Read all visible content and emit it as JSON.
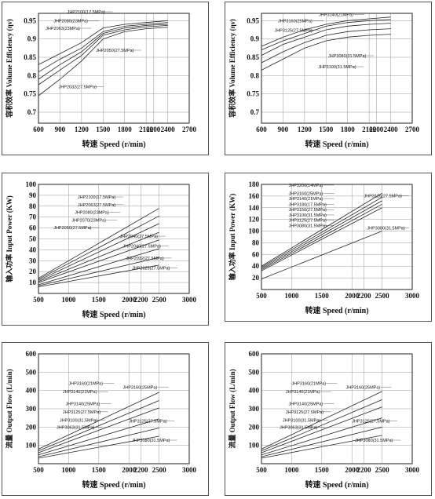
{
  "charts": [
    {
      "id": "vol-eff-left",
      "type": "line",
      "ylabel": "容积效率 Volume Efficiency (ην)",
      "xlabel": "转速 Speed (r/min)",
      "xticks": [
        600,
        900,
        1200,
        1500,
        1800,
        2100,
        2200,
        2400,
        2700
      ],
      "yticks": [
        0.7,
        0.75,
        0.8,
        0.85,
        0.9,
        0.95
      ],
      "xlim": [
        600,
        2700
      ],
      "ylim": [
        0.67,
        0.97
      ],
      "series": [
        {
          "name": "JHP2100(17.5MPa)",
          "x": [
            600,
            900,
            1200,
            1500,
            1800,
            2100,
            2400
          ],
          "y": [
            0.83,
            0.86,
            0.89,
            0.93,
            0.94,
            0.945,
            0.95
          ]
        },
        {
          "name": "JHP2080(23MPa)",
          "x": [
            600,
            900,
            1200,
            1500,
            1800,
            2100,
            2400
          ],
          "y": [
            0.81,
            0.845,
            0.875,
            0.92,
            0.935,
            0.94,
            0.945
          ]
        },
        {
          "name": "JHP2063(23MPa)",
          "x": [
            600,
            900,
            1200,
            1500,
            1800,
            2100,
            2400
          ],
          "y": [
            0.79,
            0.83,
            0.865,
            0.915,
            0.93,
            0.937,
            0.94
          ]
        },
        {
          "name": "JHP2050(27.5MPa)",
          "x": [
            600,
            900,
            1200,
            1500,
            1800,
            2100,
            2400
          ],
          "y": [
            0.775,
            0.815,
            0.855,
            0.91,
            0.925,
            0.933,
            0.937
          ]
        },
        {
          "name": "JHP2032(27.5MPa)",
          "x": [
            600,
            900,
            1200,
            1500,
            1800,
            2100,
            2400
          ],
          "y": [
            0.745,
            0.79,
            0.84,
            0.9,
            0.92,
            0.928,
            0.932
          ]
        }
      ],
      "labels": [
        {
          "text": "JHP2100(17.5MPa)",
          "x": 1000,
          "y": 0.97
        },
        {
          "text": "JHP2080(23MPa)",
          "x": 810,
          "y": 0.945
        },
        {
          "text": "JHP2063(23MPa)",
          "x": 700,
          "y": 0.925
        },
        {
          "text": "JHP2050(27.5MPa)",
          "x": 1400,
          "y": 0.865
        },
        {
          "text": "JHP2032(27.5MPa)",
          "x": 880,
          "y": 0.765
        }
      ]
    },
    {
      "id": "vol-eff-right",
      "type": "line",
      "ylabel": "容积效率 Volume Efficiency (ην)",
      "xlabel": "转速 Speed (r/min)",
      "xticks": [
        600,
        900,
        1200,
        1500,
        1800,
        2100,
        2200,
        2400,
        2700
      ],
      "yticks": [
        0.7,
        0.75,
        0.8,
        0.85,
        0.9,
        0.95
      ],
      "xlim": [
        600,
        2700
      ],
      "ylim": [
        0.67,
        0.97
      ],
      "series": [
        {
          "name": "JHP3140(21MPa)",
          "x": [
            600,
            900,
            1200,
            1500,
            1800,
            2100,
            2400
          ],
          "y": [
            0.88,
            0.905,
            0.925,
            0.94,
            0.95,
            0.955,
            0.96
          ]
        },
        {
          "name": "JHP3160(25MPa)",
          "x": [
            600,
            900,
            1200,
            1500,
            1800,
            2100,
            2400
          ],
          "y": [
            0.87,
            0.895,
            0.915,
            0.935,
            0.945,
            0.95,
            0.953
          ]
        },
        {
          "name": "JHP3125(27.5MPa)",
          "x": [
            600,
            900,
            1200,
            1500,
            1800,
            2100,
            2400
          ],
          "y": [
            0.855,
            0.885,
            0.905,
            0.925,
            0.935,
            0.94,
            0.943
          ]
        },
        {
          "name": "JHP3080(31.5MPa)",
          "x": [
            600,
            900,
            1200,
            1500,
            1800,
            2100,
            2400
          ],
          "y": [
            0.835,
            0.865,
            0.89,
            0.91,
            0.92,
            0.925,
            0.928
          ]
        },
        {
          "name": "JHP3100(31.5MPa)",
          "x": [
            600,
            900,
            1200,
            1500,
            1800,
            2100,
            2400
          ],
          "y": [
            0.815,
            0.845,
            0.875,
            0.895,
            0.905,
            0.91,
            0.913
          ]
        }
      ],
      "labels": [
        {
          "text": "JHP3140(21MPa)",
          "x": 1400,
          "y": 0.963
        },
        {
          "text": "JHP3160(25MPa)",
          "x": 830,
          "y": 0.945
        },
        {
          "text": "JHP3125(27.5MPa)",
          "x": 780,
          "y": 0.92
        },
        {
          "text": "JHP3080(31.5MPa)",
          "x": 1530,
          "y": 0.85
        },
        {
          "text": "JHP3100(31.5MPa)",
          "x": 1390,
          "y": 0.82
        }
      ]
    },
    {
      "id": "input-power-left",
      "type": "line",
      "ylabel": "输入功率 Input Power (KW)",
      "xlabel": "转速 Speed (r/min)",
      "xticks": [
        500,
        1000,
        1500,
        2000,
        2200,
        2500,
        3000
      ],
      "yticks": [
        10,
        20,
        30,
        40,
        50,
        60,
        70,
        80,
        90,
        100
      ],
      "xlim": [
        500,
        3000
      ],
      "ylim": [
        0,
        100
      ],
      "series": [
        {
          "name": "JHP2100(17.5MPa)",
          "x": [
            500,
            2500
          ],
          "y": [
            14,
            78
          ]
        },
        {
          "name": "JHP2063(27.5MPa)",
          "x": [
            500,
            2500
          ],
          "y": [
            13,
            71
          ]
        },
        {
          "name": "JHP2080(23MPa)",
          "x": [
            500,
            2500
          ],
          "y": [
            12,
            64
          ]
        },
        {
          "name": "JHP2070(23MPa)",
          "x": [
            500,
            2500
          ],
          "y": [
            11,
            56
          ]
        },
        {
          "name": "JHP2050(27.5MPa)",
          "x": [
            500,
            2500
          ],
          "y": [
            10,
            49
          ]
        },
        {
          "name": "JHP2040(27.5MPa)",
          "x": [
            500,
            2500
          ],
          "y": [
            8,
            41
          ]
        },
        {
          "name": "JHP2032(27.5MPa)",
          "x": [
            500,
            2500
          ],
          "y": [
            7,
            33
          ]
        },
        {
          "name": "JHP2025(27.5MPa)",
          "x": [
            500,
            2500
          ],
          "y": [
            6,
            26
          ]
        }
      ],
      "labels": [
        {
          "text": "JHP2100(17.5MPa)",
          "x": 1150,
          "y": 87
        },
        {
          "text": "JHP2063(27.5MPa)",
          "x": 1150,
          "y": 80
        },
        {
          "text": "JHP2080(23MPa)",
          "x": 1100,
          "y": 73
        },
        {
          "text": "JHP2070(23MPa)",
          "x": 1050,
          "y": 66
        },
        {
          "text": "JHP2050(27.5MPa)",
          "x": 750,
          "y": 59
        },
        {
          "text": "JHP2040(27.5MPa)",
          "x": 1850,
          "y": 51
        },
        {
          "text": "JHP2040(27.5MPa)",
          "x": 1900,
          "y": 42
        },
        {
          "text": "JHP2032(27.5MPa)",
          "x": 1950,
          "y": 31
        },
        {
          "text": "JHP2025(27.5MPa)",
          "x": 2050,
          "y": 22
        }
      ]
    },
    {
      "id": "input-power-right",
      "type": "line",
      "ylabel": "输入功率 Input Power (KW)",
      "xlabel": "转速 Speed (r/min)",
      "xticks": [
        500,
        1000,
        1500,
        2000,
        2200,
        2500,
        3000
      ],
      "yticks": [
        20,
        40,
        60,
        80,
        100,
        120,
        140,
        160,
        180
      ],
      "xlim": [
        500,
        3000
      ],
      "ylim": [
        0,
        180
      ],
      "series": [
        {
          "name": "JHP3200(14MPa)",
          "x": [
            500,
            2500
          ],
          "y": [
            40,
            165
          ]
        },
        {
          "name": "JHP3160(25MPa)",
          "x": [
            500,
            2500
          ],
          "y": [
            38,
            158
          ]
        },
        {
          "name": "JHP3140(21MPa)",
          "x": [
            500,
            2500
          ],
          "y": [
            36,
            152
          ]
        },
        {
          "name": "JHP3180(17.5MPa)",
          "x": [
            500,
            2500
          ],
          "y": [
            34,
            146
          ]
        },
        {
          "name": "JHP3125(27.5MPa)",
          "x": [
            500,
            2500
          ],
          "y": [
            32,
            140
          ]
        },
        {
          "name": "JHP3080(31.5MPa)",
          "x": [
            500,
            2500
          ],
          "y": [
            18,
            100
          ]
        }
      ],
      "labels": [
        {
          "text": "JHP3200(14MPa)",
          "x": 950,
          "y": 176
        },
        {
          "text": "JHP3160(25MPa)",
          "x": 950,
          "y": 162
        },
        {
          "text": "JHP3140(21MPa)",
          "x": 950,
          "y": 153
        },
        {
          "text": "JHP3180(17.5MPa)",
          "x": 950,
          "y": 143
        },
        {
          "text": "JHP3150(27.5MPa)",
          "x": 950,
          "y": 134
        },
        {
          "text": "JHP3100(31.5MPa)",
          "x": 950,
          "y": 125
        },
        {
          "text": "JHP3125(27.5MPa)",
          "x": 950,
          "y": 116
        },
        {
          "text": "JHP3080(31.5MPa)",
          "x": 950,
          "y": 107
        },
        {
          "text": "JHP3125(27.5MPa)",
          "x": 2200,
          "y": 158
        },
        {
          "text": "JHP3080(31.5MPa)",
          "x": 2250,
          "y": 103
        }
      ]
    },
    {
      "id": "output-flow-left",
      "type": "line",
      "ylabel": "流量 Output Flow (L/min)",
      "xlabel": "转速 Speed (r/min)",
      "xticks": [
        500,
        1000,
        1500,
        2000,
        2200,
        2500,
        3000
      ],
      "yticks": [
        100,
        200,
        300,
        400,
        500,
        600
      ],
      "xlim": [
        500,
        3000
      ],
      "ylim": [
        0,
        600
      ],
      "series": [
        {
          "name": "JHP3160(21MPa)",
          "x": [
            500,
            2500
          ],
          "y": [
            80,
            390
          ]
        },
        {
          "name": "JHP3140(21MPa)",
          "x": [
            500,
            2500
          ],
          "y": [
            70,
            345
          ]
        },
        {
          "name": "JHP3125(27.5MPa)",
          "x": [
            500,
            2500
          ],
          "y": [
            60,
            305
          ]
        },
        {
          "name": "JHP3100(31.5MPa)",
          "x": [
            500,
            2500
          ],
          "y": [
            48,
            245
          ]
        },
        {
          "name": "JHP3080(31.5MPa)",
          "x": [
            500,
            2500
          ],
          "y": [
            38,
            195
          ]
        },
        {
          "name": "JHP2063(27.5MPa)",
          "x": [
            500,
            2500
          ],
          "y": [
            30,
            150
          ]
        }
      ],
      "labels": [
        {
          "text": "JHP3160(21MPa)",
          "x": 1000,
          "y": 430
        },
        {
          "text": "JHP3140(21MPa)",
          "x": 900,
          "y": 385
        },
        {
          "text": "JHP3160(25MPa)",
          "x": 1900,
          "y": 410
        },
        {
          "text": "JHP3140(25MPa)",
          "x": 950,
          "y": 320
        },
        {
          "text": "JHP3125(27.5MPa)",
          "x": 900,
          "y": 275
        },
        {
          "text": "JHP3100(31.5MPa)",
          "x": 850,
          "y": 230
        },
        {
          "text": "JHP3063(31.5MPa)",
          "x": 800,
          "y": 190
        },
        {
          "text": "JHP3125(27.5MPa)",
          "x": 2000,
          "y": 225
        },
        {
          "text": "JHP3080(31.5MPa)",
          "x": 2050,
          "y": 120
        }
      ]
    },
    {
      "id": "output-flow-right",
      "type": "line",
      "ylabel": "流量 Output Flow (L/min)",
      "xlabel": "转速 Speed (r/min)",
      "xticks": [
        500,
        1000,
        1500,
        2000,
        2200,
        2500,
        3000
      ],
      "yticks": [
        100,
        200,
        300,
        400,
        500,
        600
      ],
      "xlim": [
        500,
        3000
      ],
      "ylim": [
        0,
        600
      ],
      "series": [
        {
          "name": "JHP3160(21MPa)",
          "x": [
            500,
            2500
          ],
          "y": [
            80,
            395
          ]
        },
        {
          "name": "JHP3140(21MPa)",
          "x": [
            500,
            2500
          ],
          "y": [
            70,
            350
          ]
        },
        {
          "name": "JHP3125(27.5MPa)",
          "x": [
            500,
            2500
          ],
          "y": [
            60,
            310
          ]
        },
        {
          "name": "JHP3100(31.5MPa)",
          "x": [
            500,
            2500
          ],
          "y": [
            48,
            250
          ]
        },
        {
          "name": "JHP3080(31.5MPa)",
          "x": [
            500,
            2500
          ],
          "y": [
            38,
            200
          ]
        },
        {
          "name": "JHP2063(27.5MPa)",
          "x": [
            500,
            2500
          ],
          "y": [
            30,
            155
          ]
        }
      ],
      "labels": [
        {
          "text": "JHP3160(21MPa)",
          "x": 1000,
          "y": 430
        },
        {
          "text": "JHP3140(21MPa)",
          "x": 900,
          "y": 385
        },
        {
          "text": "JHP3160(25MPa)",
          "x": 1900,
          "y": 410
        },
        {
          "text": "JHP3140(25MPa)",
          "x": 950,
          "y": 320
        },
        {
          "text": "JHP3125(27.5MPa)",
          "x": 900,
          "y": 275
        },
        {
          "text": "JHP3100(31.5MPa)",
          "x": 850,
          "y": 230
        },
        {
          "text": "JHP3063(31.5MPa)",
          "x": 800,
          "y": 190
        },
        {
          "text": "JHP3125(27.5MPa)",
          "x": 2000,
          "y": 225
        },
        {
          "text": "JHP3080(31.5MPa)",
          "x": 2050,
          "y": 120
        }
      ]
    }
  ]
}
